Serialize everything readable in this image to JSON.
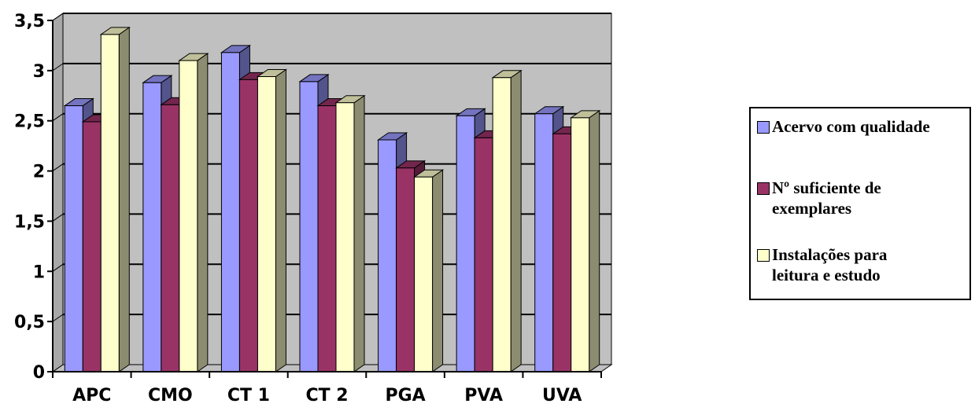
{
  "chart_data": {
    "type": "bar",
    "categories": [
      "APC",
      "CMO",
      "CT 1",
      "CT 2",
      "PGA",
      "PVA",
      "UVA"
    ],
    "series": [
      {
        "name": "Acervo com qualidade",
        "color": "#9999ff",
        "values": [
          2.65,
          2.88,
          3.18,
          2.89,
          2.31,
          2.55,
          2.57
        ]
      },
      {
        "name": "Nº suficiente de exemplares",
        "color": "#993366",
        "values": [
          2.49,
          2.66,
          2.91,
          2.65,
          2.03,
          2.33,
          2.37
        ]
      },
      {
        "name": "Instalações para leitura e estudo",
        "color": "#ffffcc",
        "values": [
          3.36,
          3.1,
          2.94,
          2.68,
          1.94,
          2.93,
          2.53
        ]
      }
    ],
    "y_ticks": [
      "0",
      "0,5",
      "1",
      "1,5",
      "2",
      "2,5",
      "3",
      "3,5"
    ],
    "ylim": [
      0,
      3.5
    ],
    "grid": true,
    "legend_position": "right",
    "legend_lines": [
      [
        "Acervo com qualidade"
      ],
      [
        "Nº suficiente de",
        "exemplares"
      ],
      [
        "Instalações para",
        "leitura e estudo"
      ]
    ],
    "plot_colors": {
      "wall": "#c0c0c0",
      "floor": "#c0c0c0"
    }
  }
}
